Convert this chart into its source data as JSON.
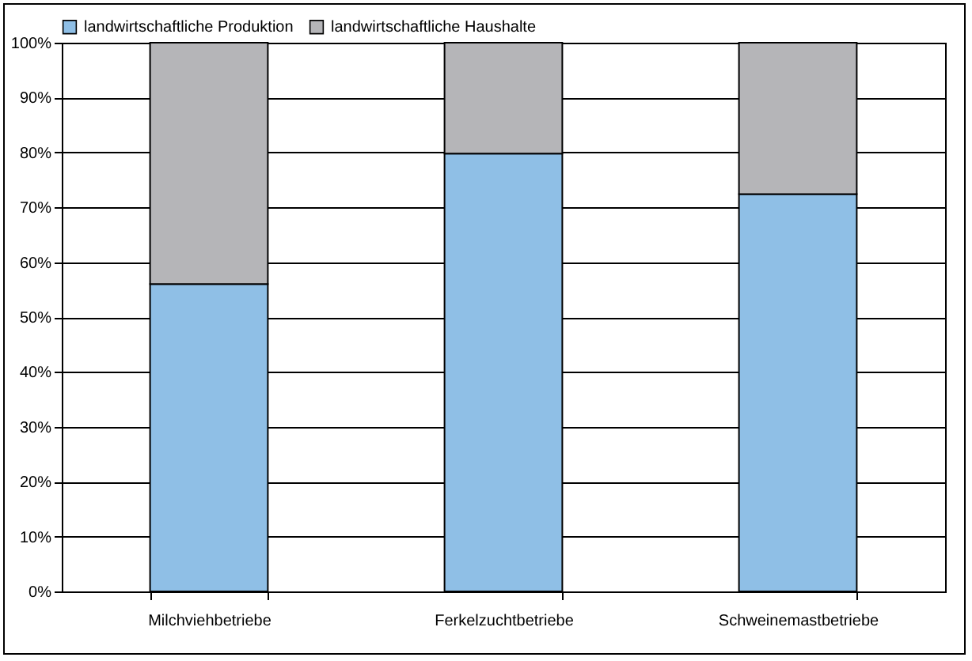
{
  "chart_data": {
    "type": "bar",
    "stacked": true,
    "categories": [
      "Milchviehbetriebe",
      "Ferkelzuchtbetriebe",
      "Schweinemastbetriebe"
    ],
    "series": [
      {
        "name": "landwirtschaftliche Produktion",
        "color": "#8fbfe6",
        "values": [
          56,
          79.8,
          72.4
        ]
      },
      {
        "name": "landwirtschaftliche Haushalte",
        "color": "#b5b5b8",
        "values": [
          44,
          20.2,
          27.6
        ]
      }
    ],
    "ylim": [
      0,
      100
    ],
    "yticks": [
      {
        "value": 0,
        "label": "0%"
      },
      {
        "value": 10,
        "label": "10%"
      },
      {
        "value": 20,
        "label": "20%"
      },
      {
        "value": 30,
        "label": "30%"
      },
      {
        "value": 40,
        "label": "40%"
      },
      {
        "value": 50,
        "label": "50%"
      },
      {
        "value": 60,
        "label": "60%"
      },
      {
        "value": 70,
        "label": "70%"
      },
      {
        "value": 80,
        "label": "80%"
      },
      {
        "value": 90,
        "label": "90%"
      },
      {
        "value": 100,
        "label": "100%"
      }
    ],
    "grid": "y",
    "legend": "top"
  }
}
